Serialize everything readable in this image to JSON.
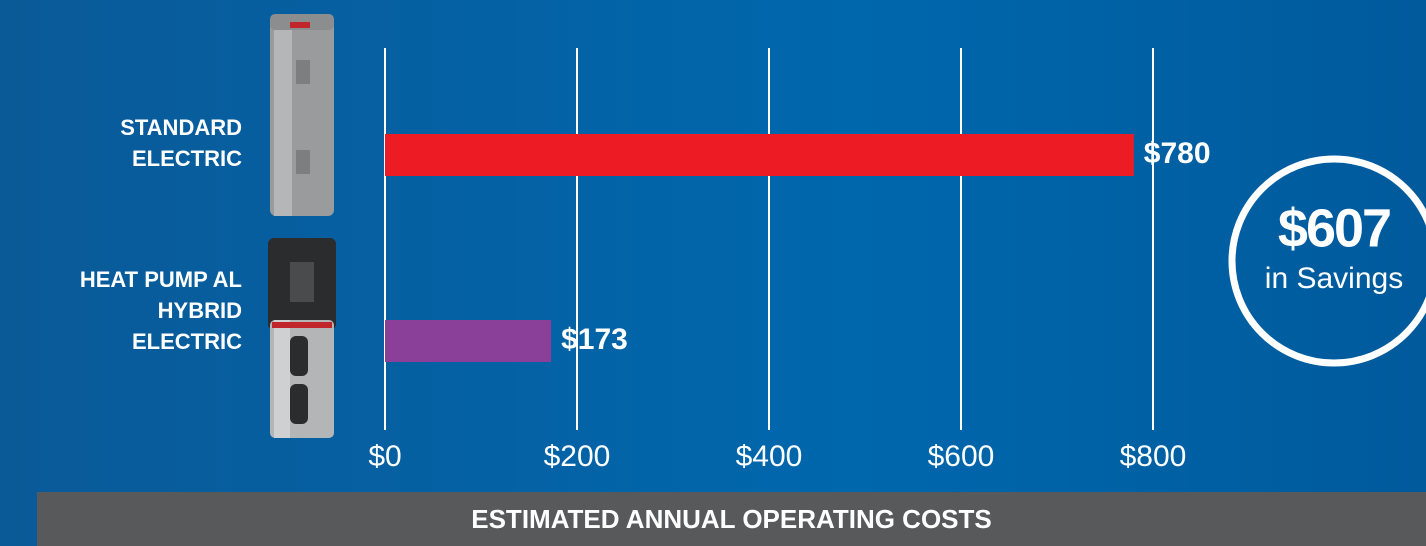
{
  "chart_data": {
    "type": "bar",
    "orientation": "horizontal",
    "categories": [
      "STANDARD ELECTRIC",
      "HEAT PUMP AL HYBRID ELECTRIC"
    ],
    "series": [
      {
        "name": null,
        "colors": [
          "#ed1c24",
          "#8a3f98"
        ],
        "values": [
          780,
          173
        ],
        "value_labels": [
          "$780",
          "$173"
        ]
      }
    ],
    "xlim": [
      0,
      800
    ],
    "xticks": [
      {
        "value": 0,
        "label": "$0"
      },
      {
        "value": 200,
        "label": "$200"
      },
      {
        "value": 400,
        "label": "$400"
      },
      {
        "value": 600,
        "label": "$600"
      },
      {
        "value": 800,
        "label": "$800"
      }
    ],
    "grid": true,
    "annotation": {
      "amount": "$607",
      "text": "in Savings"
    },
    "footer": "ESTIMATED ANNUAL OPERATING COSTS"
  }
}
